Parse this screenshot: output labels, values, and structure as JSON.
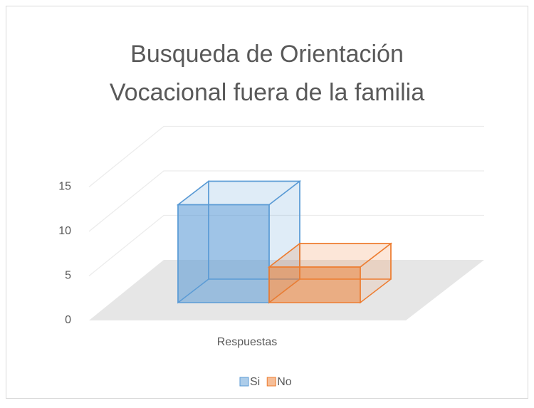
{
  "chart_data": {
    "type": "bar3d",
    "title": [
      "Busqueda de Orientación",
      "Vocacional fuera de la familia"
    ],
    "categories": [
      "Respuestas"
    ],
    "series": [
      {
        "name": "Si",
        "color": "#5b9bd5",
        "values": [
          11
        ]
      },
      {
        "name": "No",
        "color": "#ed7d31",
        "values": [
          4
        ]
      }
    ],
    "ylim": [
      0,
      15
    ],
    "yticks": [
      0,
      5,
      10,
      15
    ],
    "grid": true,
    "legend": "bottom"
  }
}
